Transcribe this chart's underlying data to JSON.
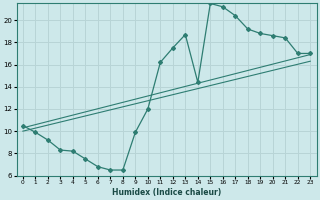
{
  "title": "",
  "xlabel": "Humidex (Indice chaleur)",
  "ylabel": "",
  "bg_color": "#cde8ea",
  "grid_color": "#b8d4d6",
  "line_color": "#2e7d72",
  "xlim": [
    -0.5,
    23.5
  ],
  "ylim": [
    6,
    21.5
  ],
  "xticks": [
    0,
    1,
    2,
    3,
    4,
    5,
    6,
    7,
    8,
    9,
    10,
    11,
    12,
    13,
    14,
    15,
    16,
    17,
    18,
    19,
    20,
    21,
    22,
    23
  ],
  "yticks": [
    6,
    8,
    10,
    12,
    14,
    16,
    18,
    20
  ],
  "curve1": {
    "x": [
      0,
      1,
      2,
      3,
      4,
      5,
      6,
      7,
      8,
      9,
      10,
      11,
      12,
      13,
      14,
      15,
      16,
      17,
      18,
      19,
      20,
      21,
      22,
      23
    ],
    "y": [
      10.5,
      9.9,
      9.2,
      8.3,
      8.2,
      7.5,
      6.8,
      6.5,
      6.5,
      9.9,
      12.0,
      16.2,
      17.5,
      18.7,
      14.4,
      21.5,
      21.2,
      20.4,
      19.2,
      18.8,
      18.6,
      18.4,
      17.0,
      17.0
    ]
  },
  "line2": {
    "x": [
      0,
      23
    ],
    "y": [
      10.3,
      16.9
    ]
  },
  "line3": {
    "x": [
      0,
      23
    ],
    "y": [
      10.0,
      16.3
    ]
  }
}
